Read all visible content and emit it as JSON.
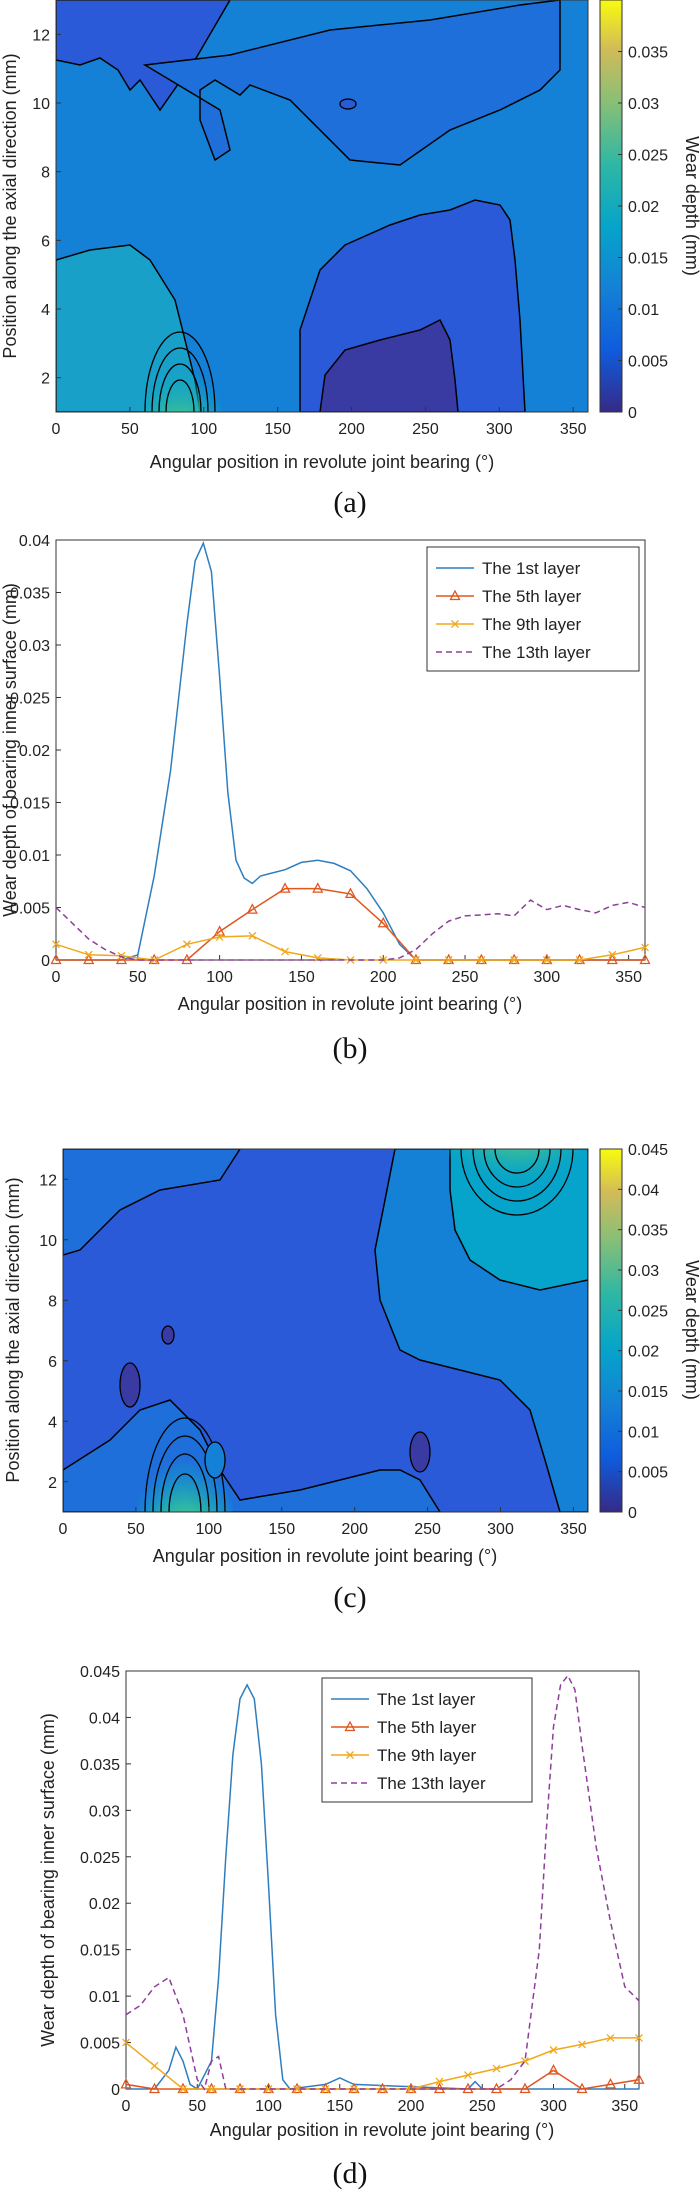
{
  "panels": [
    {
      "label": "(a)"
    },
    {
      "label": "(b)"
    },
    {
      "label": "(c)"
    },
    {
      "label": "(d)"
    }
  ],
  "colors": {
    "layer1": "#2e7ebf",
    "layer5": "#e0561f",
    "layer9": "#f0a81c",
    "layer13": "#8e3f9a",
    "contour_line": "#000000"
  },
  "chart_data": [
    {
      "type": "heatmap",
      "xlabel": "Angular position in revolute joint bearing (°)",
      "ylabel": "Position along the axial direction (mm)",
      "colorbar_label": "Wear depth (mm)",
      "xlim": [
        0,
        360
      ],
      "ylim": [
        1,
        13
      ],
      "xticks": [
        0,
        50,
        100,
        150,
        200,
        250,
        300,
        350
      ],
      "yticks": [
        2,
        4,
        6,
        8,
        10,
        12
      ],
      "colorbar_range": [
        0,
        0.04
      ],
      "colorbar_ticks": [
        "0",
        "0.005",
        "0.01",
        "0.015",
        "0.02",
        "0.025",
        "0.03",
        "0.035"
      ],
      "colormap": "parula",
      "peaks": [
        {
          "x": 88,
          "y": 1,
          "value": 0.039
        },
        {
          "x": 200,
          "y": 2,
          "value": 0.0
        }
      ]
    },
    {
      "type": "line",
      "xlabel": "Angular position in revolute joint bearing (°)",
      "ylabel": "Wear depth of bearing inner surface (mm)",
      "xlim": [
        0,
        360
      ],
      "ylim": [
        0,
        0.04
      ],
      "xticks": [
        0,
        50,
        100,
        150,
        200,
        250,
        300,
        350
      ],
      "yticks": [
        "0",
        "0.005",
        "0.01",
        "0.015",
        "0.02",
        "0.025",
        "0.03",
        "0.035",
        "0.04"
      ],
      "legend_position": "top-right",
      "series": [
        {
          "name": "The 1st layer",
          "style": "solid",
          "x": [
            0,
            40,
            50,
            60,
            70,
            80,
            85,
            90,
            95,
            100,
            105,
            110,
            115,
            120,
            125,
            130,
            140,
            150,
            160,
            170,
            180,
            190,
            200,
            210,
            220,
            360
          ],
          "y": [
            0,
            0,
            0.0005,
            0.008,
            0.018,
            0.032,
            0.038,
            0.0397,
            0.037,
            0.027,
            0.016,
            0.0095,
            0.0078,
            0.0073,
            0.008,
            0.0082,
            0.0086,
            0.0093,
            0.0095,
            0.0092,
            0.0085,
            0.0068,
            0.0045,
            0.0015,
            0,
            0
          ]
        },
        {
          "name": "The 5th layer",
          "style": "triangle",
          "x": [
            0,
            20,
            40,
            60,
            80,
            100,
            120,
            140,
            160,
            180,
            200,
            220,
            240,
            260,
            280,
            300,
            320,
            340,
            360
          ],
          "y": [
            0,
            0,
            0,
            0,
            0,
            0.0027,
            0.0048,
            0.0068,
            0.0068,
            0.0063,
            0.0035,
            0,
            0,
            0,
            0,
            0,
            0,
            0,
            0
          ]
        },
        {
          "name": "The 9th layer",
          "style": "cross",
          "x": [
            0,
            20,
            40,
            60,
            80,
            100,
            120,
            140,
            160,
            180,
            200,
            220,
            240,
            260,
            280,
            300,
            320,
            340,
            360
          ],
          "y": [
            0.0015,
            0.0005,
            0.0004,
            0,
            0.0015,
            0.0022,
            0.0023,
            0.0008,
            0.0002,
            0,
            0,
            0,
            0,
            0,
            0,
            0,
            0,
            0.0005,
            0.0012
          ]
        },
        {
          "name": "The 13th layer",
          "style": "dashed",
          "x": [
            0,
            10,
            20,
            30,
            40,
            50,
            60,
            200,
            210,
            220,
            230,
            240,
            250,
            260,
            270,
            280,
            290,
            300,
            310,
            320,
            330,
            340,
            350,
            360
          ],
          "y": [
            0.005,
            0.0035,
            0.002,
            0.001,
            0.0003,
            0,
            0,
            0,
            0.0002,
            0.001,
            0.0025,
            0.0037,
            0.0042,
            0.0043,
            0.0044,
            0.0042,
            0.0057,
            0.0048,
            0.0052,
            0.0048,
            0.0045,
            0.0052,
            0.0055,
            0.005
          ]
        }
      ]
    },
    {
      "type": "heatmap",
      "xlabel": "Angular position in revolute joint bearing (°)",
      "ylabel": "Position along the axial direction (mm)",
      "colorbar_label": "Wear depth (mm)",
      "xlim": [
        0,
        360
      ],
      "ylim": [
        1,
        13
      ],
      "xticks": [
        0,
        50,
        100,
        150,
        200,
        250,
        300,
        350
      ],
      "yticks": [
        2,
        4,
        6,
        8,
        10,
        12
      ],
      "colorbar_range": [
        0,
        0.045
      ],
      "colorbar_ticks": [
        "0",
        "0.005",
        "0.01",
        "0.015",
        "0.02",
        "0.025",
        "0.03",
        "0.035",
        "0.04",
        "0.045"
      ],
      "colormap": "parula",
      "peaks": [
        {
          "x": 85,
          "y": 1,
          "value": 0.043
        },
        {
          "x": 312,
          "y": 13,
          "value": 0.044
        }
      ]
    },
    {
      "type": "line",
      "xlabel": "Angular position in revolute joint bearing (°)",
      "ylabel": "Wear depth of bearing inner surface (mm)",
      "xlim": [
        0,
        360
      ],
      "ylim": [
        0,
        0.045
      ],
      "xticks": [
        0,
        50,
        100,
        150,
        200,
        250,
        300,
        350
      ],
      "yticks": [
        "0",
        "0.005",
        "0.01",
        "0.015",
        "0.02",
        "0.025",
        "0.03",
        "0.035",
        "0.04",
        "0.045"
      ],
      "legend_position": "top-center",
      "series": [
        {
          "name": "The 1st layer",
          "style": "solid",
          "x": [
            0,
            20,
            30,
            35,
            40,
            45,
            50,
            60,
            65,
            70,
            75,
            80,
            85,
            90,
            95,
            100,
            105,
            110,
            115,
            140,
            150,
            160,
            240,
            245,
            250,
            260,
            360
          ],
          "y": [
            0,
            0,
            0.002,
            0.0045,
            0.003,
            0.0005,
            0,
            0.003,
            0.012,
            0.025,
            0.036,
            0.042,
            0.0435,
            0.042,
            0.035,
            0.022,
            0.008,
            0.001,
            0,
            0.0005,
            0.0012,
            0.0005,
            0,
            0.0008,
            0,
            0,
            0
          ]
        },
        {
          "name": "The 5th layer",
          "style": "triangle",
          "x": [
            0,
            20,
            40,
            60,
            80,
            100,
            120,
            140,
            160,
            180,
            200,
            220,
            240,
            260,
            280,
            300,
            320,
            340,
            360
          ],
          "y": [
            0.0005,
            0,
            0,
            0,
            0,
            0,
            0,
            0,
            0,
            0,
            0,
            0,
            0,
            0,
            0,
            0.002,
            0,
            0.0005,
            0.001
          ]
        },
        {
          "name": "The 9th layer",
          "style": "cross",
          "x": [
            0,
            20,
            40,
            60,
            80,
            100,
            120,
            140,
            160,
            180,
            200,
            220,
            240,
            260,
            280,
            300,
            320,
            340,
            360
          ],
          "y": [
            0.005,
            0.0025,
            0,
            0,
            0,
            0,
            0,
            0,
            0,
            0,
            0,
            0.0008,
            0.0015,
            0.0022,
            0.003,
            0.0042,
            0.0048,
            0.0055,
            0.0055
          ]
        },
        {
          "name": "The 13th layer",
          "style": "dashed",
          "x": [
            0,
            10,
            20,
            30,
            40,
            50,
            55,
            60,
            65,
            70,
            80,
            260,
            270,
            280,
            290,
            295,
            300,
            305,
            310,
            315,
            320,
            330,
            340,
            350,
            360
          ],
          "y": [
            0.008,
            0.009,
            0.011,
            0.012,
            0.008,
            0.001,
            0,
            0.003,
            0.0035,
            0,
            0,
            0,
            0.001,
            0.003,
            0.015,
            0.028,
            0.039,
            0.0435,
            0.0445,
            0.043,
            0.037,
            0.026,
            0.018,
            0.011,
            0.0095
          ]
        }
      ]
    }
  ]
}
